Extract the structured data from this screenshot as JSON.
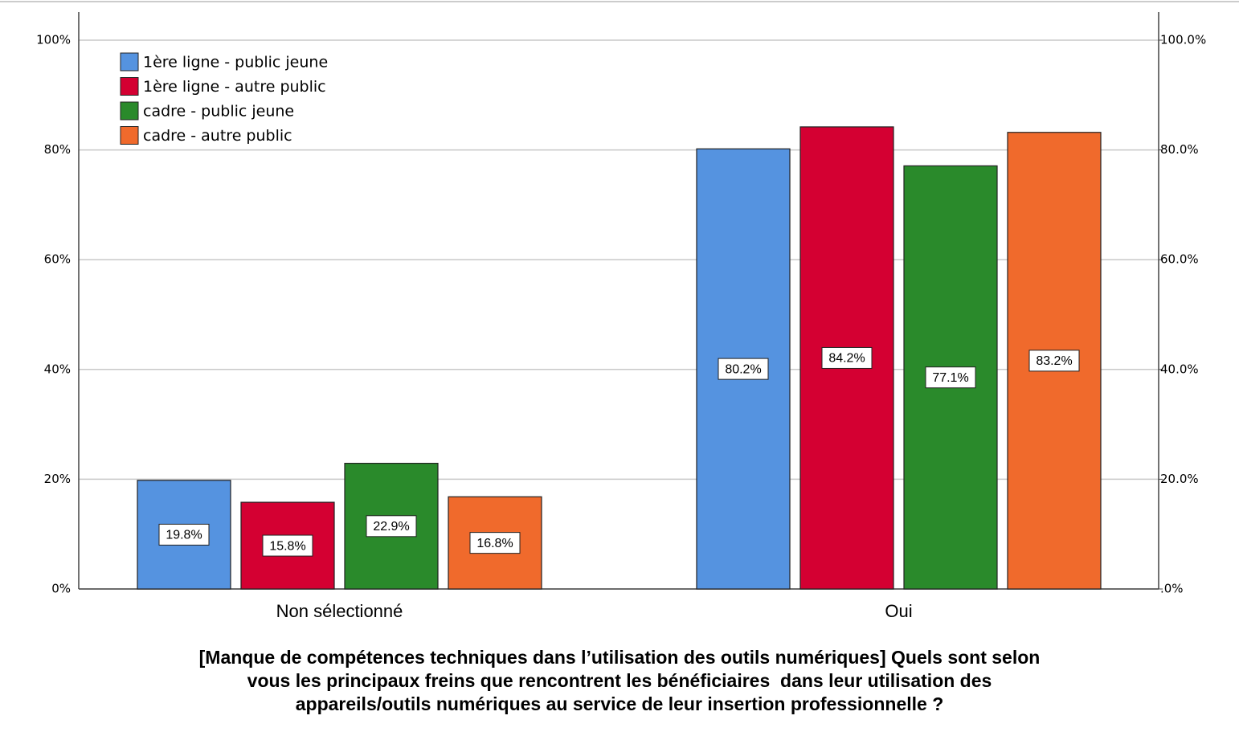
{
  "chart_data": {
    "type": "bar",
    "title": [
      "[Manque de compétences techniques dans l’utilisation des outils numériques] Quels sont selon",
      "vous les principaux freins que rencontrent les bénéficiaires  dans leur utilisation des",
      "appareils/outils numériques au service de leur insertion professionnelle ?"
    ],
    "categories": [
      "Non sélectionné",
      "Oui"
    ],
    "series": [
      {
        "name": "1ère ligne - public jeune",
        "color": "#5593e0",
        "values": [
          19.8,
          80.2
        ],
        "value_labels": [
          "19.8%",
          "80.2%"
        ]
      },
      {
        "name": "1ère ligne - autre public",
        "color": "#d40032",
        "values": [
          15.8,
          84.2
        ],
        "value_labels": [
          "15.8%",
          "84.2%"
        ]
      },
      {
        "name": "cadre - public jeune",
        "color": "#2a8a2b",
        "values": [
          22.9,
          77.1
        ],
        "value_labels": [
          "22.9%",
          "77.1%"
        ]
      },
      {
        "name": "cadre - autre public",
        "color": "#f06a2c",
        "values": [
          16.8,
          83.2
        ],
        "value_labels": [
          "16.8%",
          "83.2%"
        ]
      }
    ],
    "ylim": [
      0,
      100
    ],
    "yticks": [
      {
        "value": 0,
        "label": "0%"
      },
      {
        "value": 20,
        "label": "20%"
      },
      {
        "value": 40,
        "label": "40%"
      },
      {
        "value": 60,
        "label": "60%"
      },
      {
        "value": 80,
        "label": "80%"
      },
      {
        "value": 100,
        "label": "100%"
      }
    ],
    "y2lim": [
      0,
      100
    ],
    "y2ticks": [
      {
        "value": 0,
        "label": ".0%"
      },
      {
        "value": 20,
        "label": "20.0%"
      },
      {
        "value": 40,
        "label": "40.0%"
      },
      {
        "value": 60,
        "label": "60.0%"
      },
      {
        "value": 80,
        "label": "80.0%"
      },
      {
        "value": 100,
        "label": "100.0%"
      }
    ],
    "grid": true,
    "legend": "upper left"
  }
}
